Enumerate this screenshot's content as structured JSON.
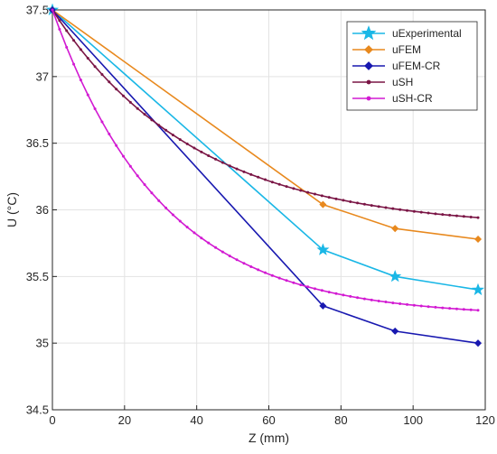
{
  "chart_data": {
    "type": "line",
    "xlabel": "Z (mm)",
    "ylabel": "U (°C)",
    "xlim": [
      0,
      120
    ],
    "ylim": [
      34.5,
      37.5
    ],
    "x_ticks": [
      "0",
      "20",
      "40",
      "60",
      "80",
      "100",
      "120"
    ],
    "y_ticks": [
      "34.5",
      "35",
      "35.5",
      "36",
      "36.5",
      "37",
      "37.5"
    ],
    "grid": true,
    "legend_position": "top-right",
    "series": [
      {
        "name": "uExperimental",
        "color": "#1ab7e6",
        "marker": "star",
        "x": [
          0,
          75,
          95,
          118
        ],
        "y": [
          37.5,
          35.7,
          35.5,
          35.4
        ]
      },
      {
        "name": "uFEM",
        "color": "#e8891e",
        "marker": "diamond",
        "x": [
          0,
          75,
          95,
          118
        ],
        "y": [
          37.5,
          36.04,
          35.86,
          35.78
        ]
      },
      {
        "name": "uFEM-CR",
        "color": "#1818b0",
        "marker": "diamond",
        "x": [
          0,
          75,
          95,
          118
        ],
        "y": [
          37.5,
          35.28,
          35.09,
          35.0
        ]
      },
      {
        "name": "uSH",
        "color": "#7a1545",
        "marker": "dot",
        "curve": {
          "a": 1.64,
          "b": 2.54,
          "c": 35.86
        }
      },
      {
        "name": "uSH-CR",
        "color": "#d21ad2",
        "marker": "dot",
        "curve": {
          "a": 2.3,
          "b": 3.3,
          "c": 35.2
        }
      }
    ]
  }
}
